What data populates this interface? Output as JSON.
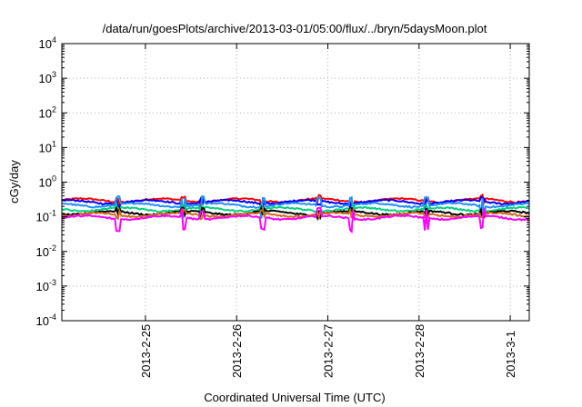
{
  "chart_data": {
    "type": "line",
    "title": "/data/run/goesPlots/archive/2013-03-01/05:00/flux/../bryn/5daysMoon.plot",
    "xlabel": "Coordinated Universal Time (UTC)",
    "ylabel": "cGy/day",
    "yscale": "log",
    "ylim": [
      0.0001,
      10000
    ],
    "xlim": [
      "2013-02-24 02:00",
      "2013-03-01 05:00"
    ],
    "grid": true,
    "x_ticks": [
      {
        "value": "2013-02-25 00:00",
        "label": "2013-2-25"
      },
      {
        "value": "2013-02-26 00:00",
        "label": "2013-2-26"
      },
      {
        "value": "2013-02-27 00:00",
        "label": "2013-2-27"
      },
      {
        "value": "2013-02-28 00:00",
        "label": "2013-2-28"
      },
      {
        "value": "2013-03-01 00:00",
        "label": "2013-3-1"
      }
    ],
    "y_ticks": [
      {
        "value": 0.0001,
        "base": "10",
        "exp": "-4"
      },
      {
        "value": 0.001,
        "base": "10",
        "exp": "-3"
      },
      {
        "value": 0.01,
        "base": "10",
        "exp": "-2"
      },
      {
        "value": 0.1,
        "base": "10",
        "exp": "-1"
      },
      {
        "value": 1,
        "base": "10",
        "exp": "0"
      },
      {
        "value": 10,
        "base": "10",
        "exp": "1"
      },
      {
        "value": 100,
        "base": "10",
        "exp": "2"
      },
      {
        "value": 1000,
        "base": "10",
        "exp": "3"
      },
      {
        "value": 10000,
        "base": "10",
        "exp": "4"
      }
    ],
    "series": [
      {
        "color": "#ff0000",
        "base": 0.3
      },
      {
        "color": "#0000ff",
        "base": 0.27
      },
      {
        "color": "#1e90ff",
        "base": 0.22
      },
      {
        "color": "#00d27f",
        "base": 0.165
      },
      {
        "color": "#000000",
        "base": 0.13
      },
      {
        "color": "#d2691e",
        "base": 0.115
      },
      {
        "color": "#ff00ff",
        "base": 0.095
      }
    ]
  }
}
